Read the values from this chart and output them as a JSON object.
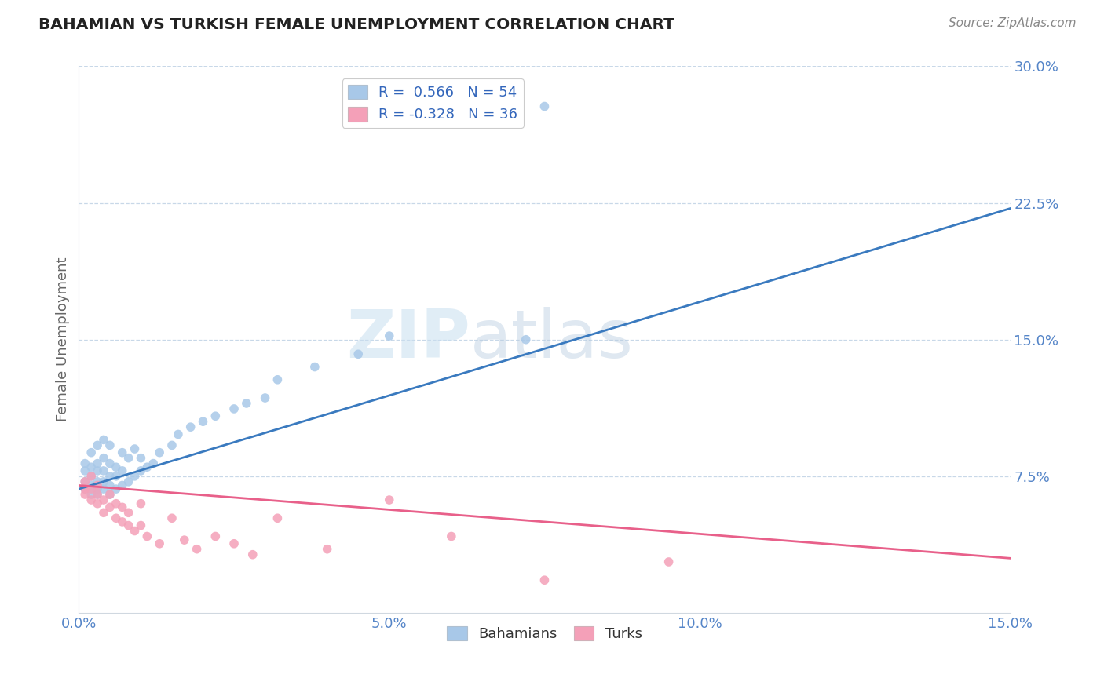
{
  "title": "BAHAMIAN VS TURKISH FEMALE UNEMPLOYMENT CORRELATION CHART",
  "source": "Source: ZipAtlas.com",
  "ylabel": "Female Unemployment",
  "xmin": 0.0,
  "xmax": 0.15,
  "ymin": 0.0,
  "ymax": 0.3,
  "yticks": [
    0.0,
    0.075,
    0.15,
    0.225,
    0.3
  ],
  "ytick_labels": [
    "",
    "7.5%",
    "15.0%",
    "22.5%",
    "30.0%"
  ],
  "xticks": [
    0.0,
    0.05,
    0.1,
    0.15
  ],
  "xtick_labels": [
    "0.0%",
    "5.0%",
    "10.0%",
    "15.0%"
  ],
  "blue_R": 0.566,
  "blue_N": 54,
  "pink_R": -0.328,
  "pink_N": 36,
  "blue_color": "#a8c8e8",
  "pink_color": "#f4a0b8",
  "blue_line_color": "#3a7abf",
  "pink_line_color": "#e8608a",
  "legend_label_blue": "Bahamians",
  "legend_label_pink": "Turks",
  "blue_line_x0": 0.0,
  "blue_line_y0": 0.068,
  "blue_line_x1": 0.15,
  "blue_line_y1": 0.222,
  "pink_line_x0": 0.0,
  "pink_line_y0": 0.07,
  "pink_line_x1": 0.15,
  "pink_line_y1": 0.03,
  "blue_scatter_x": [
    0.001,
    0.001,
    0.001,
    0.001,
    0.002,
    0.002,
    0.002,
    0.002,
    0.002,
    0.003,
    0.003,
    0.003,
    0.003,
    0.003,
    0.003,
    0.004,
    0.004,
    0.004,
    0.004,
    0.004,
    0.005,
    0.005,
    0.005,
    0.005,
    0.005,
    0.006,
    0.006,
    0.006,
    0.007,
    0.007,
    0.007,
    0.008,
    0.008,
    0.009,
    0.009,
    0.01,
    0.01,
    0.011,
    0.012,
    0.013,
    0.015,
    0.016,
    0.018,
    0.02,
    0.022,
    0.025,
    0.027,
    0.03,
    0.032,
    0.038,
    0.045,
    0.05,
    0.072,
    0.075
  ],
  "blue_scatter_y": [
    0.068,
    0.072,
    0.078,
    0.082,
    0.065,
    0.07,
    0.075,
    0.08,
    0.088,
    0.065,
    0.068,
    0.072,
    0.078,
    0.082,
    0.092,
    0.068,
    0.072,
    0.078,
    0.085,
    0.095,
    0.065,
    0.07,
    0.075,
    0.082,
    0.092,
    0.068,
    0.075,
    0.08,
    0.07,
    0.078,
    0.088,
    0.072,
    0.085,
    0.075,
    0.09,
    0.078,
    0.085,
    0.08,
    0.082,
    0.088,
    0.092,
    0.098,
    0.102,
    0.105,
    0.108,
    0.112,
    0.115,
    0.118,
    0.128,
    0.135,
    0.142,
    0.152,
    0.15,
    0.278
  ],
  "pink_scatter_x": [
    0.001,
    0.001,
    0.001,
    0.002,
    0.002,
    0.002,
    0.003,
    0.003,
    0.003,
    0.004,
    0.004,
    0.005,
    0.005,
    0.006,
    0.006,
    0.007,
    0.007,
    0.008,
    0.008,
    0.009,
    0.01,
    0.01,
    0.011,
    0.013,
    0.015,
    0.017,
    0.019,
    0.022,
    0.025,
    0.028,
    0.032,
    0.04,
    0.05,
    0.06,
    0.075,
    0.095
  ],
  "pink_scatter_y": [
    0.065,
    0.068,
    0.072,
    0.062,
    0.068,
    0.075,
    0.06,
    0.065,
    0.07,
    0.055,
    0.062,
    0.058,
    0.065,
    0.052,
    0.06,
    0.05,
    0.058,
    0.048,
    0.055,
    0.045,
    0.048,
    0.06,
    0.042,
    0.038,
    0.052,
    0.04,
    0.035,
    0.042,
    0.038,
    0.032,
    0.052,
    0.035,
    0.062,
    0.042,
    0.018,
    0.028
  ]
}
